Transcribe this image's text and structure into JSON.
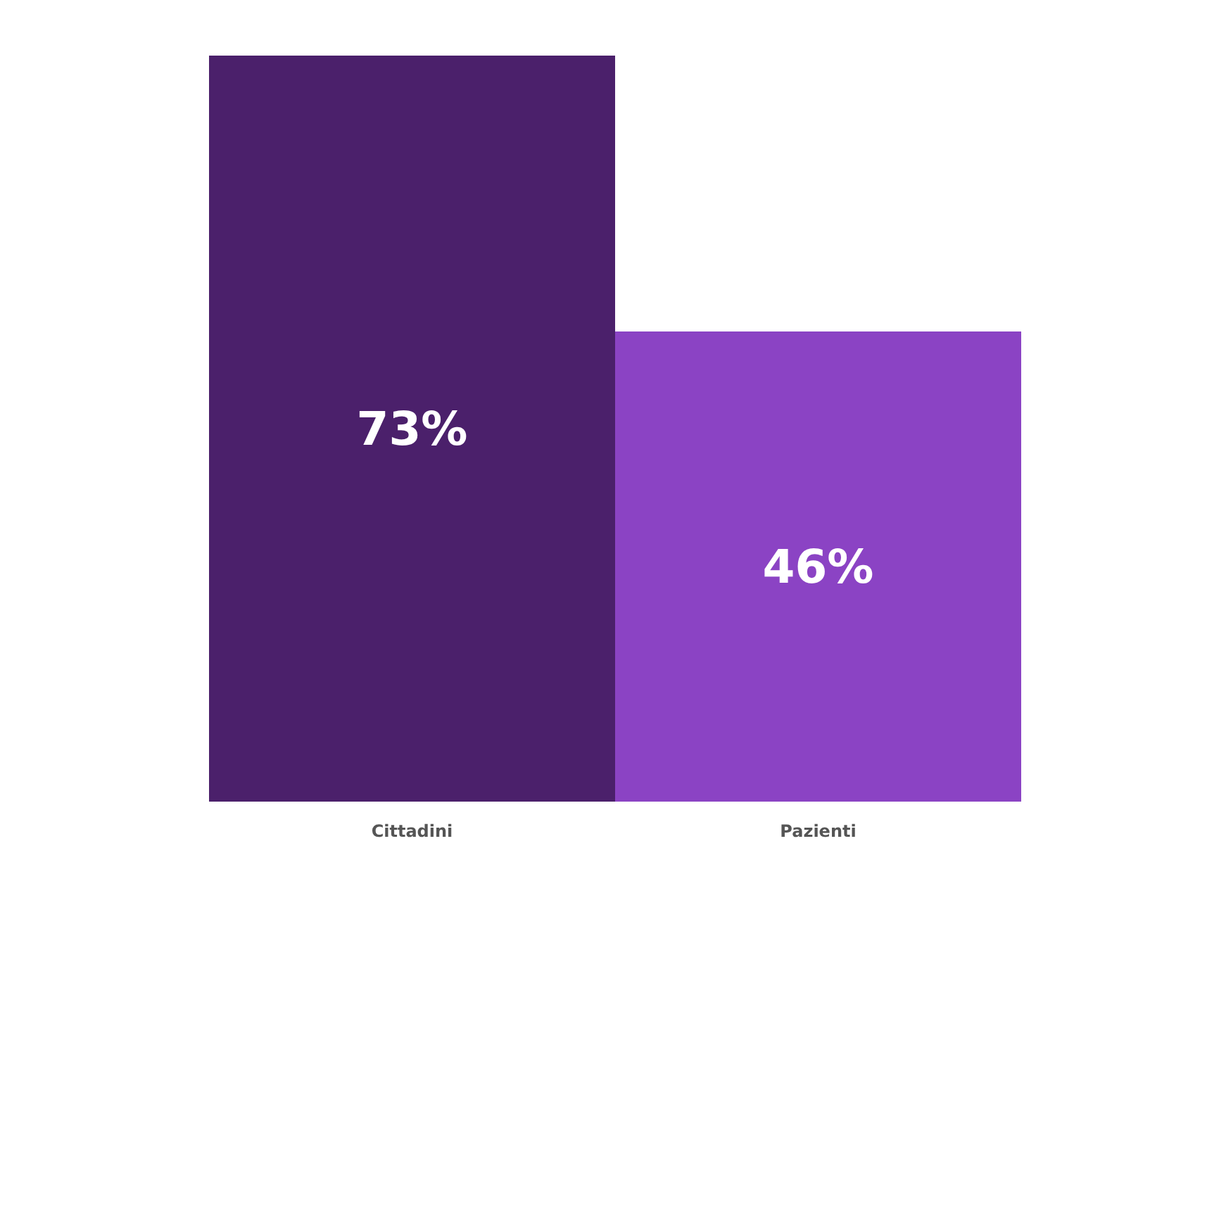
{
  "chart_data": {
    "type": "bar",
    "categories": [
      "Cittadini",
      "Pazienti"
    ],
    "values": [
      73,
      46
    ],
    "colors": [
      "#4b206b",
      "#8b43c4"
    ],
    "value_labels": [
      "73%",
      "46%"
    ]
  }
}
